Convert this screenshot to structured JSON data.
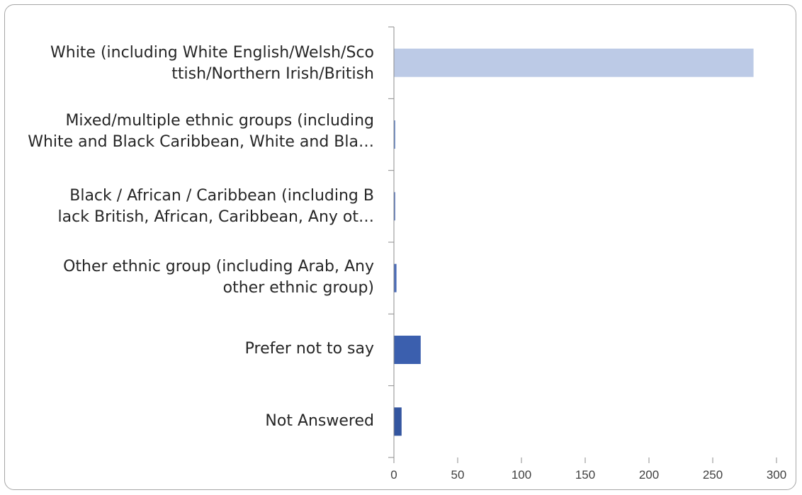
{
  "chart_data": {
    "type": "bar",
    "orientation": "horizontal",
    "categories": [
      "White (including White English/Welsh/Sco\nttish/Northern Irish/British",
      "Mixed/multiple ethnic groups (including\nWhite and Black Caribbean, White and Bla…",
      "Black / African / Caribbean (including B\nlack British, African, Caribbean, Any ot…",
      "Other ethnic group (including Arab, Any\nother ethnic group)",
      "Prefer not to say",
      "Not Answered"
    ],
    "values": [
      282,
      1,
      1,
      2,
      21,
      6
    ],
    "bar_colors": [
      "#bccae6",
      "#5b7fc4",
      "#5573bd",
      "#4a6ab7",
      "#3b5fae",
      "#33559f"
    ],
    "xlim": [
      0,
      300
    ],
    "xticks": [
      "0",
      "50",
      "100",
      "150",
      "200",
      "250",
      "300"
    ],
    "grid": false,
    "legend": "none",
    "title": "",
    "xlabel": "",
    "ylabel": ""
  }
}
